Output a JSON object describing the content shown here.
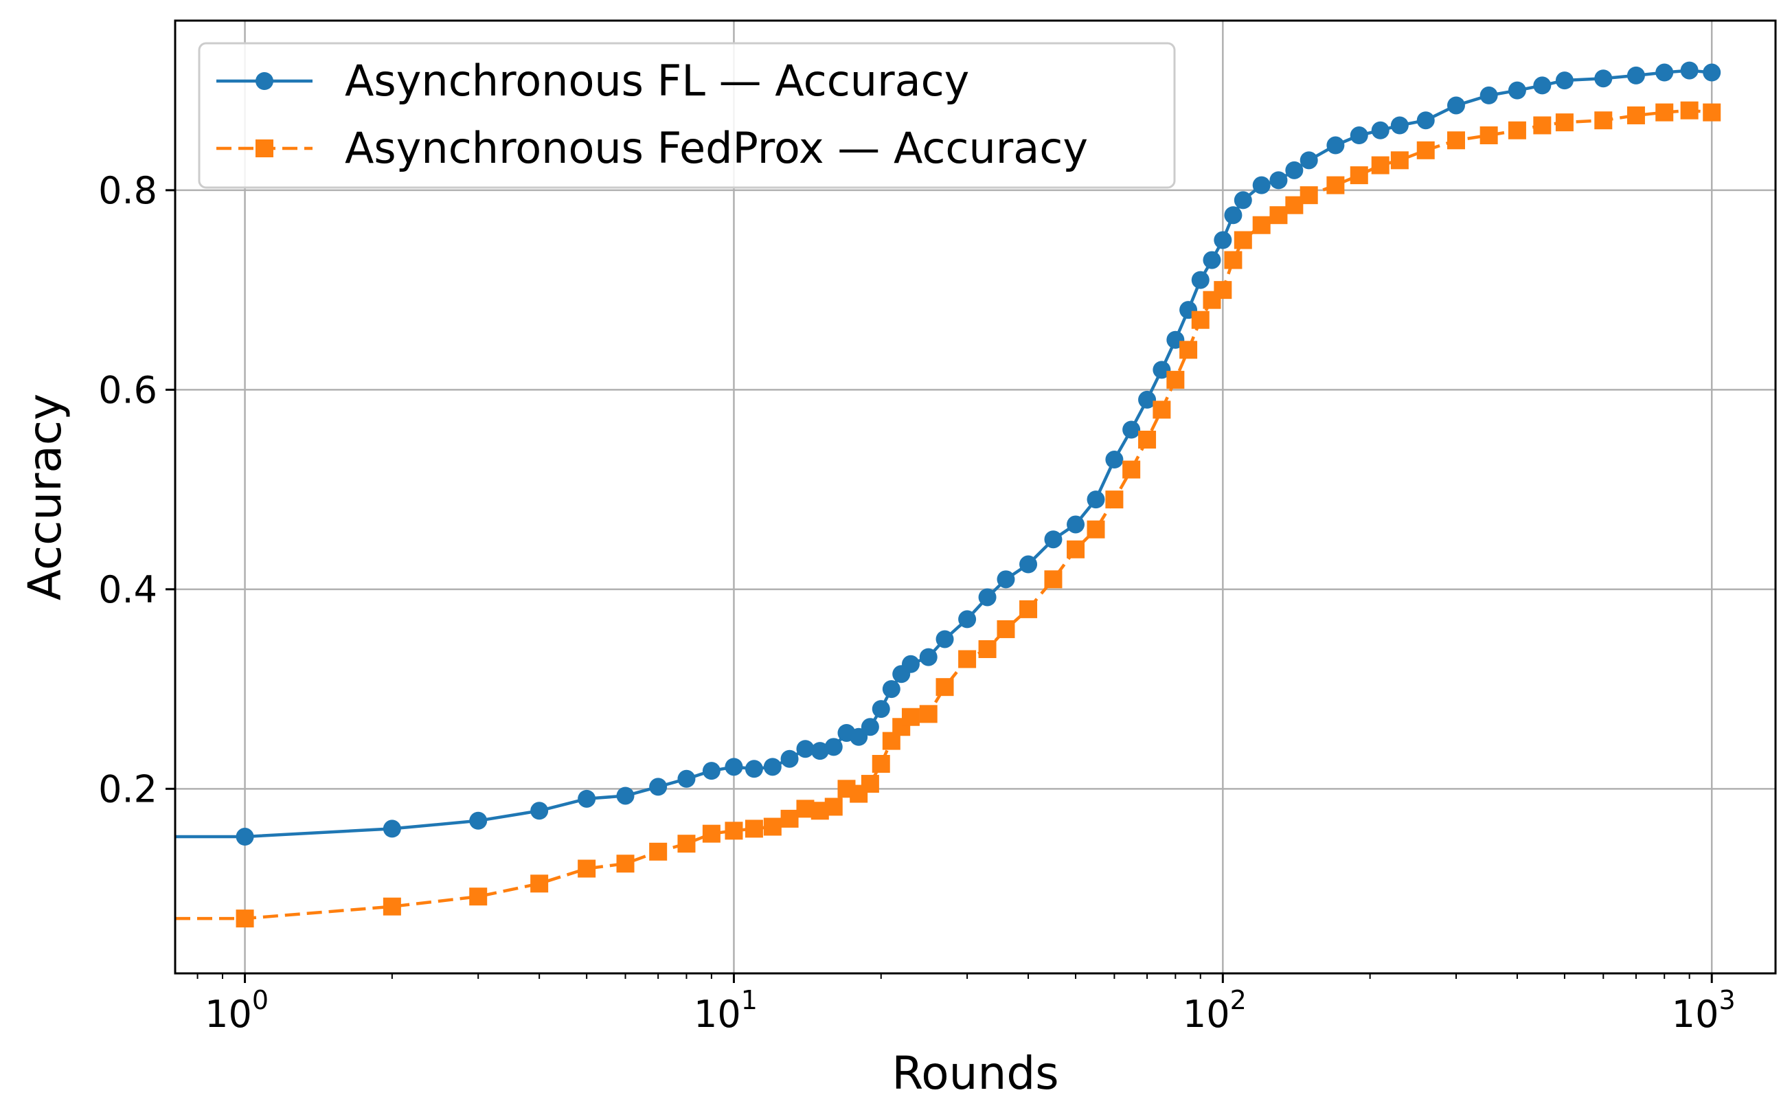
{
  "chart_data": {
    "type": "line",
    "xlabel": "Rounds",
    "ylabel": "Accuracy",
    "xscale": "log",
    "xlim": [
      0.72,
      1350
    ],
    "ylim": [
      0.015,
      0.97
    ],
    "grid": true,
    "legend_position": "top-left",
    "x_ticks": [
      {
        "base": "10",
        "exp": "0",
        "value": 1
      },
      {
        "base": "10",
        "exp": "1",
        "value": 10
      },
      {
        "base": "10",
        "exp": "2",
        "value": 100
      },
      {
        "base": "10",
        "exp": "3",
        "value": 1000
      }
    ],
    "y_ticks": [
      {
        "label": "0.2",
        "value": 0.2
      },
      {
        "label": "0.4",
        "value": 0.4
      },
      {
        "label": "0.6",
        "value": 0.6
      },
      {
        "label": "0.8",
        "value": 0.8
      }
    ],
    "series": [
      {
        "name": "Asynchronous FL — Accuracy",
        "color": "#1f77b4",
        "marker": "circle",
        "linestyle": "solid",
        "x": [
          1,
          2,
          3,
          4,
          5,
          6,
          7,
          8,
          9,
          10,
          11,
          12,
          13,
          14,
          15,
          16,
          17,
          18,
          19,
          20,
          21,
          22,
          23,
          25,
          27,
          30,
          33,
          36,
          40,
          45,
          50,
          55,
          60,
          65,
          70,
          75,
          80,
          85,
          90,
          95,
          100,
          105,
          110,
          120,
          130,
          140,
          150,
          170,
          190,
          210,
          230,
          260,
          300,
          350,
          400,
          450,
          500,
          600,
          700,
          800,
          900,
          1000
        ],
        "y": [
          0.152,
          0.16,
          0.168,
          0.178,
          0.19,
          0.193,
          0.202,
          0.21,
          0.218,
          0.222,
          0.22,
          0.222,
          0.23,
          0.24,
          0.238,
          0.242,
          0.256,
          0.252,
          0.262,
          0.28,
          0.3,
          0.315,
          0.325,
          0.332,
          0.35,
          0.37,
          0.392,
          0.41,
          0.425,
          0.45,
          0.465,
          0.49,
          0.53,
          0.56,
          0.59,
          0.62,
          0.65,
          0.68,
          0.71,
          0.73,
          0.75,
          0.775,
          0.79,
          0.805,
          0.81,
          0.82,
          0.83,
          0.845,
          0.855,
          0.86,
          0.865,
          0.87,
          0.885,
          0.895,
          0.9,
          0.905,
          0.91,
          0.912,
          0.915,
          0.918,
          0.92,
          0.918
        ]
      },
      {
        "name": "Asynchronous FedProx — Accuracy",
        "color": "#ff7f0e",
        "marker": "square",
        "linestyle": "dashed",
        "x": [
          1,
          2,
          3,
          4,
          5,
          6,
          7,
          8,
          9,
          10,
          11,
          12,
          13,
          14,
          15,
          16,
          17,
          18,
          19,
          20,
          21,
          22,
          23,
          25,
          27,
          30,
          33,
          36,
          40,
          45,
          50,
          55,
          60,
          65,
          70,
          75,
          80,
          85,
          90,
          95,
          100,
          105,
          110,
          120,
          130,
          140,
          150,
          170,
          190,
          210,
          230,
          260,
          300,
          350,
          400,
          450,
          500,
          600,
          700,
          800,
          900,
          1000
        ],
        "y": [
          0.07,
          0.082,
          0.092,
          0.105,
          0.12,
          0.125,
          0.137,
          0.145,
          0.155,
          0.158,
          0.16,
          0.162,
          0.17,
          0.18,
          0.178,
          0.182,
          0.2,
          0.195,
          0.205,
          0.225,
          0.248,
          0.262,
          0.272,
          0.275,
          0.302,
          0.33,
          0.34,
          0.36,
          0.38,
          0.41,
          0.44,
          0.46,
          0.49,
          0.52,
          0.55,
          0.58,
          0.61,
          0.64,
          0.67,
          0.69,
          0.7,
          0.73,
          0.75,
          0.765,
          0.775,
          0.785,
          0.795,
          0.805,
          0.815,
          0.825,
          0.83,
          0.84,
          0.85,
          0.855,
          0.86,
          0.865,
          0.868,
          0.87,
          0.875,
          0.878,
          0.88,
          0.878
        ]
      }
    ]
  }
}
